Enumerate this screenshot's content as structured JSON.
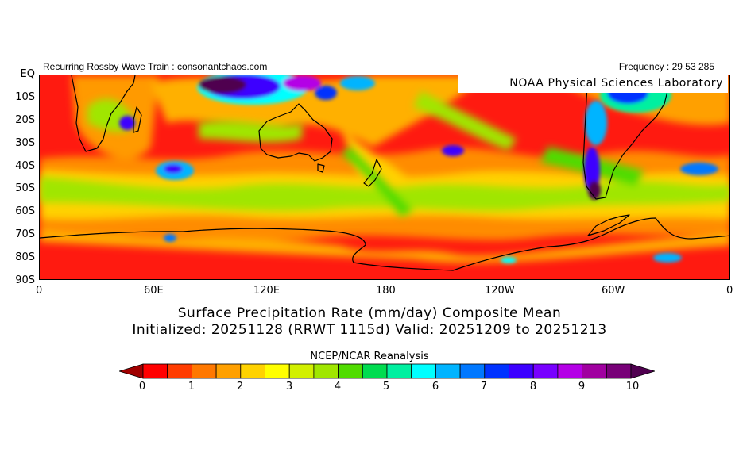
{
  "header": {
    "left_text": "Recurring Rossby Wave Train : consonantchaos.com",
    "right_text": "Frequency : 29 53 285"
  },
  "map": {
    "credit": "NOAA Physical Sciences Laboratory",
    "y_ticks": [
      "EQ",
      "10S",
      "20S",
      "30S",
      "40S",
      "50S",
      "60S",
      "70S",
      "80S",
      "90S"
    ],
    "x_ticks": [
      "0",
      "60E",
      "120E",
      "180",
      "120W",
      "60W",
      "0"
    ],
    "ocean_color": "#ff1a10",
    "coast_color": "#000000"
  },
  "title": {
    "line1": "Surface Precipitation Rate (mm/day) Composite Mean",
    "line2": "Initialized: 20251128 (RRWT 1115d) Valid: 20251209 to 20251213"
  },
  "source": "NCEP/NCAR Reanalysis",
  "colorbar": {
    "labels": [
      "0",
      "1",
      "2",
      "3",
      "4",
      "5",
      "6",
      "7",
      "8",
      "9",
      "10"
    ],
    "colors": [
      "#a00000",
      "#ff0000",
      "#ff3c00",
      "#ff7800",
      "#ffa000",
      "#ffd200",
      "#ffff00",
      "#d2f000",
      "#a0e600",
      "#50dc00",
      "#00dc50",
      "#00f0a0",
      "#00ffff",
      "#00b4ff",
      "#0078ff",
      "#0032ff",
      "#3c00ff",
      "#7800ff",
      "#b400e6",
      "#a000a0",
      "#780078",
      "#500050"
    ]
  }
}
